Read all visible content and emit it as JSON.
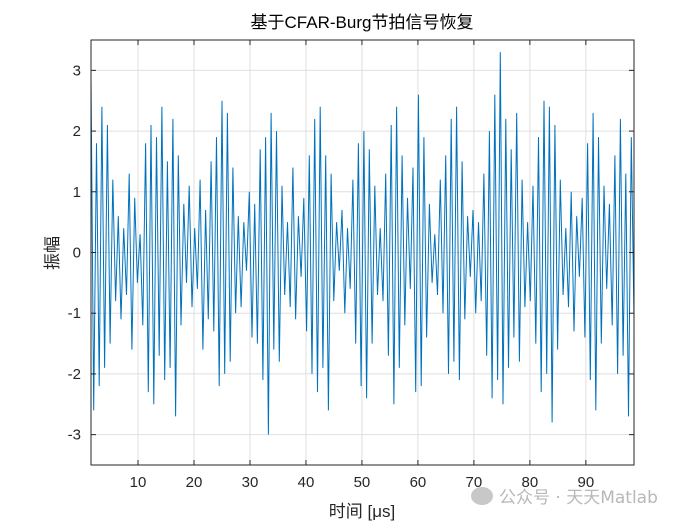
{
  "chart_data": {
    "type": "line",
    "title": "基于CFAR-Burg节拍信号恢复",
    "xlabel": "时间 [μs]",
    "ylabel": "振幅",
    "xlim": [
      1.6,
      98.6
    ],
    "ylim": [
      -3.5,
      3.5
    ],
    "xticks": [
      10,
      20,
      30,
      40,
      50,
      60,
      70,
      80,
      90
    ],
    "yticks": [
      -3,
      -2,
      -1,
      0,
      1,
      2,
      3
    ],
    "grid": true,
    "color": "#0072BD",
    "series": [
      {
        "x_start": 1.6,
        "x_end": 98.6,
        "values": [
          2.9,
          -2.6,
          1.8,
          -2.2,
          2.4,
          -1.9,
          2.1,
          -1.5,
          1.2,
          -0.8,
          0.6,
          -1.1,
          0.4,
          -0.7,
          1.3,
          -1.6,
          0.9,
          -0.5,
          0.3,
          -1.2,
          1.8,
          -2.3,
          2.1,
          -2.5,
          1.9,
          -1.7,
          2.4,
          -2.1,
          1.5,
          -1.9,
          2.2,
          -2.7,
          1.6,
          -1.2,
          0.8,
          -0.5,
          1.1,
          -0.9,
          0.4,
          -0.6,
          1.2,
          -1.6,
          0.7,
          -1.1,
          1.5,
          -1.3,
          1.9,
          -2.2,
          2.5,
          -2.0,
          2.3,
          -1.8,
          1.4,
          -1.0,
          0.6,
          -0.9,
          0.5,
          -0.3,
          1.0,
          -1.4,
          0.8,
          -1.5,
          1.7,
          -2.1,
          1.9,
          -3.0,
          2.3,
          -1.6,
          2.0,
          -1.8,
          1.1,
          -0.7,
          0.5,
          -0.9,
          1.4,
          -1.1,
          0.6,
          -0.4,
          0.9,
          -1.3,
          1.6,
          -2.0,
          2.2,
          -2.3,
          2.4,
          -1.9,
          1.6,
          -2.6,
          1.3,
          -0.8,
          0.5,
          -0.3,
          0.7,
          -1.0,
          0.4,
          -0.6,
          1.2,
          -1.5,
          1.8,
          -2.2,
          2.0,
          -2.4,
          1.7,
          -1.5,
          1.1,
          -0.7,
          0.4,
          -0.8,
          1.3,
          -1.7,
          2.1,
          -2.5,
          2.4,
          -1.9,
          1.6,
          -1.2,
          0.9,
          -0.6,
          1.4,
          -2.3,
          2.6,
          -2.2,
          1.9,
          -1.4,
          0.8,
          -0.5,
          0.3,
          -0.7,
          1.2,
          -1.0,
          1.6,
          -2.0,
          2.2,
          -1.8,
          2.4,
          -2.1,
          1.5,
          -1.1,
          0.6,
          -0.4,
          0.7,
          -1.0,
          0.5,
          -0.8,
          1.3,
          -1.7,
          2.0,
          -2.4,
          2.6,
          -2.1,
          3.3,
          -2.5,
          2.2,
          -1.9,
          1.7,
          -1.4,
          2.3,
          -1.8,
          1.2,
          -0.9,
          0.5,
          -0.8,
          1.1,
          -1.5,
          1.9,
          -2.3,
          2.5,
          -2.0,
          2.4,
          -2.8,
          2.1,
          -1.6,
          1.2,
          -0.7,
          0.4,
          -0.9,
          1.0,
          -1.3,
          0.6,
          -0.4,
          0.9,
          -1.4,
          1.8,
          -2.1,
          2.3,
          -2.6,
          1.9,
          -1.5,
          1.1,
          -0.6,
          0.8,
          -1.2,
          1.6,
          -2.0,
          2.2,
          -1.7,
          1.3,
          -2.7,
          1.9,
          -1.1
        ]
      }
    ]
  },
  "watermark": {
    "text": "公众号 · 天天Matlab"
  }
}
